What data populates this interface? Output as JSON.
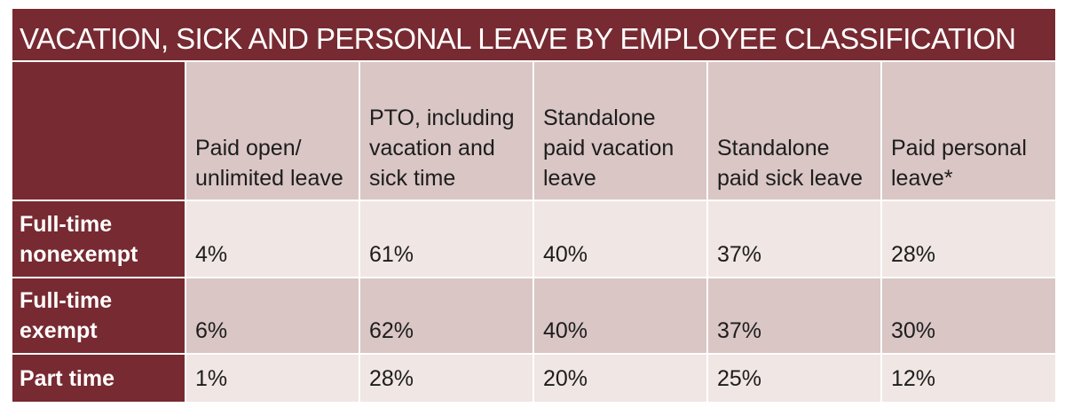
{
  "table": {
    "title": "VACATION, SICK AND PERSONAL LEAVE BY EMPLOYEE CLASSIFICATION",
    "columns": [
      "Paid open/ unlimited leave",
      "PTO, including vacation and sick time",
      "Standalone paid vacation leave",
      "Standalone paid sick leave",
      "Paid personal leave*"
    ],
    "rows": [
      {
        "label": "Full-time nonexempt",
        "values": [
          "4%",
          "61%",
          "40%",
          "37%",
          "28%"
        ]
      },
      {
        "label": "Full-time exempt",
        "values": [
          "6%",
          "62%",
          "40%",
          "37%",
          "30%"
        ]
      },
      {
        "label": "Part time",
        "values": [
          "1%",
          "28%",
          "20%",
          "25%",
          "12%"
        ]
      }
    ]
  },
  "colors": {
    "header_band": "#772a31",
    "header_cell": "#d9c6c5",
    "light_row": "#f0e6e3",
    "dark_row": "#d9c6c5",
    "text": "#1d1d1d"
  }
}
